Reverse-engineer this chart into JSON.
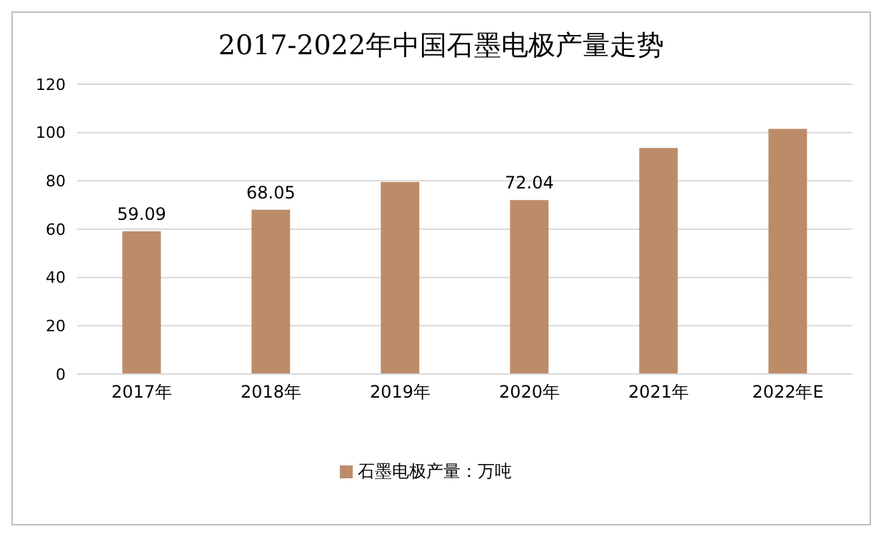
{
  "chart_data": {
    "type": "bar",
    "title": "2017-2022年中国石墨电极产量走势",
    "categories": [
      "2017年",
      "2018年",
      "2019年",
      "2020年",
      "2021年",
      "2022年E"
    ],
    "series": [
      {
        "name": "石墨电极产量：万吨",
        "color": "#bc8c69",
        "values": [
          59.09,
          68.05,
          79.5,
          72.04,
          93.6,
          101.5
        ],
        "value_labels": [
          "59.09",
          "68.05",
          null,
          "72.04",
          null,
          null
        ]
      }
    ],
    "ylim": [
      0,
      120
    ],
    "yticks": [
      0,
      20,
      40,
      60,
      80,
      100,
      120
    ],
    "grid": "y",
    "legend": "bottom"
  }
}
